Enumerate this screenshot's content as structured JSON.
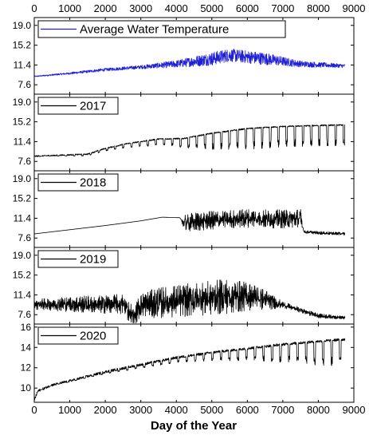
{
  "chart_data": [
    {
      "type": "line",
      "legend": "Average Water Temperature",
      "color": "#1f1fd6",
      "y_ticks": [
        "19.0",
        "15.2",
        "11.4",
        "7.6"
      ],
      "y_tick_values": [
        19.0,
        15.2,
        11.4,
        7.6
      ],
      "ylim": [
        5.8,
        20.5
      ],
      "pattern": {
        "envelope": [
          [
            0,
            9.2
          ],
          [
            1000,
            9.8
          ],
          [
            2000,
            10.5
          ],
          [
            3000,
            11.0
          ],
          [
            4000,
            11.6
          ],
          [
            5000,
            12.6
          ],
          [
            5500,
            13.3
          ],
          [
            6500,
            12.6
          ],
          [
            7500,
            11.6
          ],
          [
            8800,
            11.2
          ]
        ],
        "noise": [
          [
            0,
            0.1
          ],
          [
            1500,
            0.25
          ],
          [
            3000,
            0.35
          ],
          [
            4000,
            0.7
          ],
          [
            5000,
            1.3
          ],
          [
            6500,
            1.2
          ],
          [
            7500,
            0.6
          ],
          [
            8800,
            0.35
          ]
        ],
        "style": "noise"
      }
    },
    {
      "type": "line",
      "legend": "2017",
      "color": "#000000",
      "y_ticks": [
        "19.0",
        "15.2",
        "11.4",
        "7.6"
      ],
      "y_tick_values": [
        19.0,
        15.2,
        11.4,
        7.6
      ],
      "ylim": [
        5.8,
        20.5
      ],
      "pattern": {
        "envelope": [
          [
            0,
            8.6
          ],
          [
            1500,
            9.0
          ],
          [
            2000,
            10.1
          ],
          [
            2600,
            11.0
          ],
          [
            3500,
            11.9
          ],
          [
            4200,
            12.0
          ],
          [
            5000,
            13.0
          ],
          [
            6000,
            13.9
          ],
          [
            7000,
            14.3
          ],
          [
            8000,
            14.5
          ],
          [
            8750,
            14.6
          ]
        ],
        "spikes": [
          [
            0,
            0
          ],
          [
            2000,
            0.5
          ],
          [
            4000,
            1.5
          ],
          [
            5000,
            3.2
          ],
          [
            6000,
            4.0
          ],
          [
            8750,
            4.0
          ]
        ],
        "spike_period": 230,
        "style": "spikes-down"
      }
    },
    {
      "type": "line",
      "legend": "2018",
      "color": "#000000",
      "y_ticks": [
        "19.0",
        "15.2",
        "11.4",
        "7.6"
      ],
      "y_tick_values": [
        19.0,
        15.2,
        11.4,
        7.6
      ],
      "ylim": [
        5.8,
        20.5
      ],
      "pattern": {
        "envelope": [
          [
            0,
            8.4
          ],
          [
            1000,
            9.2
          ],
          [
            2000,
            10.0
          ],
          [
            3000,
            10.9
          ],
          [
            3600,
            11.6
          ],
          [
            4100,
            11.5
          ],
          [
            4200,
            10.5
          ],
          [
            5000,
            11.0
          ],
          [
            6000,
            11.4
          ],
          [
            7200,
            11.2
          ],
          [
            7500,
            11.4
          ],
          [
            7600,
            8.8
          ],
          [
            8000,
            8.6
          ],
          [
            8750,
            8.4
          ]
        ],
        "spikes": [
          [
            0,
            0
          ],
          [
            4150,
            0
          ],
          [
            4200,
            1.8
          ],
          [
            7500,
            1.8
          ],
          [
            7600,
            0.3
          ],
          [
            8750,
            0.3
          ]
        ],
        "spike_period": 110,
        "style": "band"
      }
    },
    {
      "type": "line",
      "legend": "2019",
      "color": "#000000",
      "y_ticks": [
        "19.0",
        "15.2",
        "11.4",
        "7.6"
      ],
      "y_tick_values": [
        19.0,
        15.2,
        11.4,
        7.6
      ],
      "ylim": [
        5.8,
        20.5
      ],
      "pattern": {
        "envelope": [
          [
            0,
            9.6
          ],
          [
            1500,
            9.6
          ],
          [
            2500,
            9.6
          ],
          [
            2800,
            7.2
          ],
          [
            3000,
            9.5
          ],
          [
            4000,
            10.2
          ],
          [
            5000,
            10.8
          ],
          [
            5500,
            11.2
          ],
          [
            6200,
            11.0
          ],
          [
            7000,
            9.5
          ],
          [
            8000,
            7.4
          ],
          [
            8750,
            7.0
          ]
        ],
        "spikes": [
          [
            0,
            1.0
          ],
          [
            1000,
            1.5
          ],
          [
            2000,
            1.8
          ],
          [
            2500,
            2.0
          ],
          [
            3000,
            2.2
          ],
          [
            3500,
            3.0
          ],
          [
            5500,
            3.4
          ],
          [
            6500,
            2.0
          ],
          [
            7000,
            0.6
          ],
          [
            8750,
            0.3
          ]
        ],
        "spike_period": 90,
        "style": "band"
      }
    },
    {
      "type": "line",
      "legend": "2020",
      "color": "#000000",
      "y_ticks": [
        "16",
        "14",
        "12",
        "10"
      ],
      "y_tick_values": [
        16,
        14,
        12,
        10
      ],
      "ylim": [
        8.6,
        16.3
      ],
      "pattern": {
        "envelope": [
          [
            0,
            8.8
          ],
          [
            100,
            9.7
          ],
          [
            500,
            10.3
          ],
          [
            1000,
            10.7
          ],
          [
            2000,
            11.6
          ],
          [
            3000,
            12.3
          ],
          [
            4000,
            13.0
          ],
          [
            5000,
            13.5
          ],
          [
            6000,
            13.9
          ],
          [
            7000,
            14.3
          ],
          [
            8000,
            14.6
          ],
          [
            8750,
            14.8
          ]
        ],
        "spikes": [
          [
            0,
            0
          ],
          [
            2000,
            0.2
          ],
          [
            4000,
            0.5
          ],
          [
            5500,
            1.0
          ],
          [
            7000,
            1.8
          ],
          [
            8000,
            2.5
          ],
          [
            8750,
            2.5
          ]
        ],
        "spike_period": 240,
        "style": "spikes-down"
      }
    }
  ],
  "x_ticks": [
    "0",
    "1000",
    "2000",
    "3000",
    "4000",
    "5000",
    "6000",
    "7000",
    "8000",
    "9000"
  ],
  "x_tick_values": [
    0,
    1000,
    2000,
    3000,
    4000,
    5000,
    6000,
    7000,
    8000,
    9000
  ],
  "xlim": [
    0,
    9000
  ],
  "xlabel": "Day of the Year"
}
